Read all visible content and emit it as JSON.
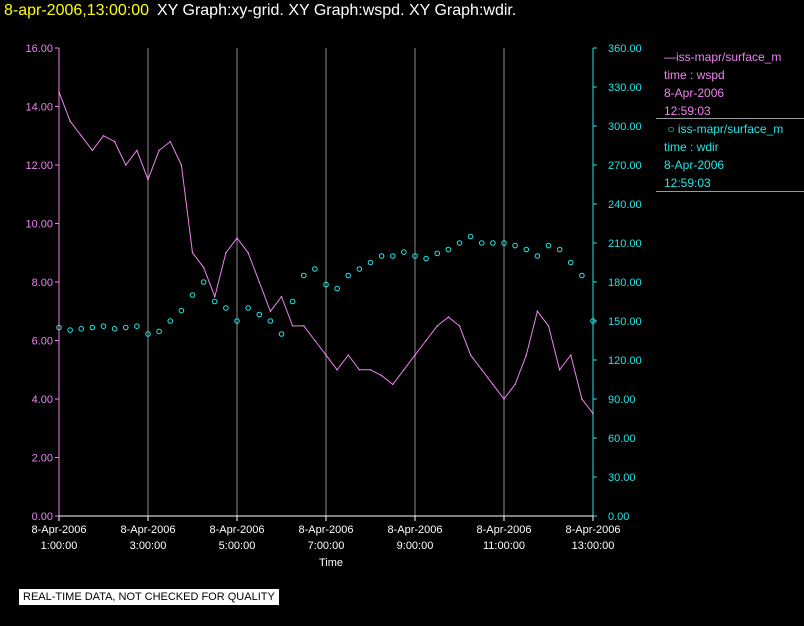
{
  "header": {
    "datetime": "8-apr-2006,13:00:00",
    "titles": "XY Graph:xy-grid.  XY Graph:wspd.  XY Graph:wdir."
  },
  "colors": {
    "wspd": "#ee82ee",
    "wdir": "#22e5e5",
    "grid": "#8a8a8a",
    "background": "#000000"
  },
  "legend": {
    "wspd": {
      "line1": "iss-mapr/surface_m",
      "line2": "time : wspd",
      "line3": "8-Apr-2006",
      "line4": "12:59:03"
    },
    "wdir": {
      "line1": "iss-mapr/surface_m",
      "line2": "time : wdir",
      "line3": "8-Apr-2006",
      "line4": "12:59:03"
    }
  },
  "notice": "REAL-TIME DATA, NOT CHECKED FOR QUALITY",
  "chart_data": {
    "type": "line",
    "xlabel": "Time",
    "x_tick_labels": [
      [
        "8-Apr-2006",
        "1:00:00"
      ],
      [
        "8-Apr-2006",
        "3:00:00"
      ],
      [
        "8-Apr-2006",
        "5:00:00"
      ],
      [
        "8-Apr-2006",
        "7:00:00"
      ],
      [
        "8-Apr-2006",
        "9:00:00"
      ],
      [
        "8-Apr-2006",
        "11:00:00"
      ],
      [
        "8-Apr-2006",
        "13:00:00"
      ]
    ],
    "x_ticks_hours": [
      1,
      3,
      5,
      7,
      9,
      11,
      13
    ],
    "xlim_hours": [
      1,
      13
    ],
    "y_left": {
      "ylim": [
        0,
        16
      ],
      "ticks": [
        "0.00",
        "2.00",
        "4.00",
        "6.00",
        "8.00",
        "10.00",
        "12.00",
        "14.00",
        "16.00"
      ]
    },
    "y_right": {
      "ylim": [
        0,
        360
      ],
      "ticks": [
        "0.00",
        "30.00",
        "60.00",
        "90.00",
        "120.00",
        "150.00",
        "180.00",
        "210.00",
        "240.00",
        "270.00",
        "300.00",
        "330.00",
        "360.00"
      ]
    },
    "grid": "vertical",
    "series": [
      {
        "name": "time : wspd",
        "style": "line",
        "axis": "left",
        "x_hours": [
          1.0,
          1.25,
          1.5,
          1.75,
          2.0,
          2.25,
          2.5,
          2.75,
          3.0,
          3.25,
          3.5,
          3.75,
          4.0,
          4.25,
          4.5,
          4.75,
          5.0,
          5.25,
          5.5,
          5.75,
          6.0,
          6.25,
          6.5,
          6.75,
          7.0,
          7.25,
          7.5,
          7.75,
          8.0,
          8.25,
          8.5,
          8.75,
          9.0,
          9.25,
          9.5,
          9.75,
          10.0,
          10.25,
          10.5,
          10.75,
          11.0,
          11.25,
          11.5,
          11.75,
          12.0,
          12.25,
          12.5,
          12.75,
          13.0
        ],
        "values": [
          14.5,
          13.5,
          13.0,
          12.5,
          13.0,
          12.8,
          12.0,
          12.5,
          11.5,
          12.5,
          12.8,
          12.0,
          9.0,
          8.5,
          7.5,
          9.0,
          9.5,
          9.0,
          8.0,
          7.0,
          7.5,
          6.5,
          6.5,
          6.0,
          5.5,
          5.0,
          5.5,
          5.0,
          5.0,
          4.8,
          4.5,
          5.0,
          5.5,
          6.0,
          6.5,
          6.8,
          6.5,
          5.5,
          5.0,
          4.5,
          4.0,
          4.5,
          5.5,
          7.0,
          6.5,
          5.0,
          5.5,
          4.0,
          3.5
        ]
      },
      {
        "name": "time : wdir",
        "style": "points",
        "axis": "right",
        "x_hours": [
          1.0,
          1.25,
          1.5,
          1.75,
          2.0,
          2.25,
          2.5,
          2.75,
          3.0,
          3.25,
          3.5,
          3.75,
          4.0,
          4.25,
          4.5,
          4.75,
          5.0,
          5.25,
          5.5,
          5.75,
          6.0,
          6.25,
          6.5,
          6.75,
          7.0,
          7.25,
          7.5,
          7.75,
          8.0,
          8.25,
          8.5,
          8.75,
          9.0,
          9.25,
          9.5,
          9.75,
          10.0,
          10.25,
          10.5,
          10.75,
          11.0,
          11.25,
          11.5,
          11.75,
          12.0,
          12.25,
          12.5,
          12.75,
          13.0
        ],
        "values": [
          145,
          143,
          144,
          145,
          146,
          144,
          145,
          146,
          140,
          142,
          150,
          158,
          170,
          180,
          165,
          160,
          150,
          160,
          155,
          150,
          140,
          165,
          185,
          190,
          178,
          175,
          185,
          190,
          195,
          200,
          200,
          203,
          200,
          198,
          202,
          205,
          210,
          215,
          210,
          210,
          210,
          208,
          205,
          200,
          208,
          205,
          195,
          185,
          150
        ]
      }
    ]
  }
}
